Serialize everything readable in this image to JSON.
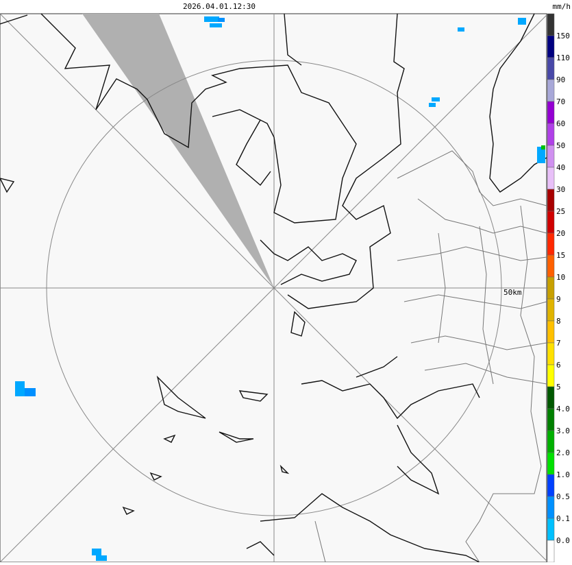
{
  "map": {
    "timestamp": "2026.04.01.12:30",
    "range_label": "50km",
    "legend": {
      "unit": "mm/h",
      "labels": [
        "150",
        "110",
        "90",
        "70",
        "60",
        "50",
        "40",
        "30",
        "25",
        "20",
        "15",
        "10",
        "9",
        "8",
        "7",
        "6",
        "5",
        "4.0",
        "3.0",
        "2.0",
        "1.0",
        "0.5",
        "0.1",
        "0.0"
      ],
      "colors": [
        "#333333",
        "#000080",
        "#4848a8",
        "#a8a8d8",
        "#9400d3",
        "#b040e8",
        "#d090f0",
        "#e8c0f8",
        "#a80000",
        "#d00000",
        "#ff2800",
        "#ff6000",
        "#c8a000",
        "#e0b400",
        "#ffc000",
        "#ffe000",
        "#ffff00",
        "#005800",
        "#008000",
        "#00b000",
        "#00e000",
        "#0040ff",
        "#0090ff",
        "#00c0ff",
        "#ffffff"
      ]
    }
  }
}
